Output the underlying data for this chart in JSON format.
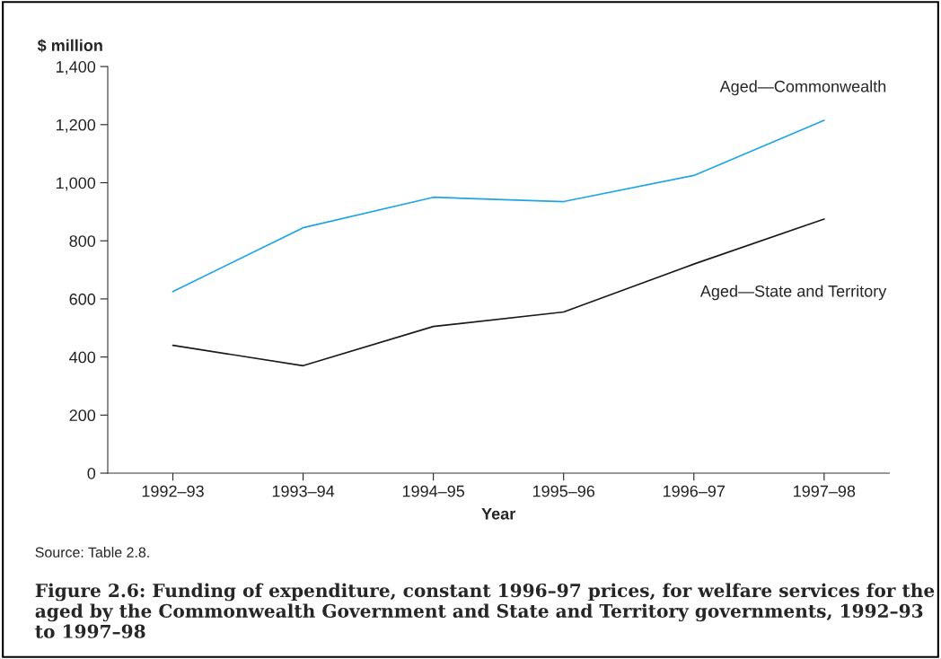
{
  "chart_data": {
    "type": "line",
    "title": "Figure 2.6: Funding of expenditure, constant 1996–97 prices, for welfare services for the aged by the Commonwealth Government and State and Territory governments, 1992–93 to 1997–98",
    "xlabel": "Year",
    "ylabel": "$ million",
    "categories": [
      "1992–93",
      "1993–94",
      "1994–95",
      "1995–96",
      "1996–97",
      "1997–98"
    ],
    "series": [
      {
        "name": "Aged—Commonwealth",
        "color": "#1ea5e3",
        "values": [
          625,
          845,
          950,
          935,
          1025,
          1215
        ]
      },
      {
        "name": "Aged—State and Territory",
        "color": "#1a1a1a",
        "values": [
          440,
          370,
          505,
          555,
          720,
          875
        ]
      }
    ],
    "ylim": [
      0,
      1400
    ],
    "yticks": [
      0,
      {
        "value": 200,
        "label": "200"
      },
      {
        "value": 400,
        "label": "400"
      },
      {
        "value": 600,
        "label": "600"
      },
      {
        "value": 800,
        "label": "800"
      },
      {
        "value": 1000,
        "label": "1,000"
      },
      {
        "value": 1200,
        "label": "1,200"
      },
      {
        "value": 1400,
        "label": "1,400"
      }
    ],
    "grid": false,
    "legend": false,
    "marker": "none",
    "line_style": "solid",
    "annotations": [
      "Source: Table 2.8."
    ]
  }
}
